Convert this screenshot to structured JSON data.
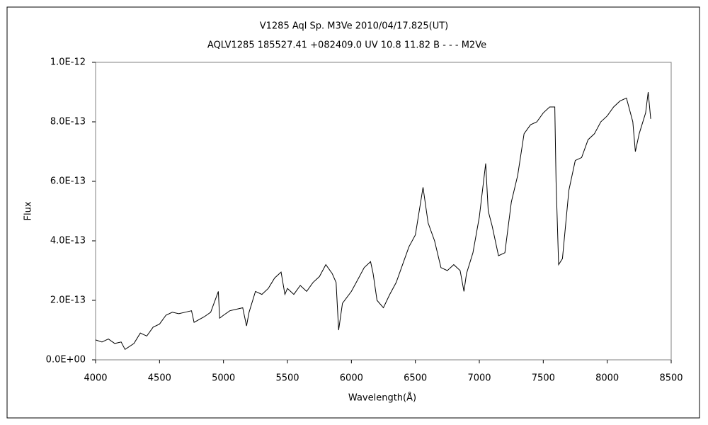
{
  "chart_data": {
    "type": "line",
    "title": "V1285 Aql    Sp. M3Ve    2010/04/17.825(UT)",
    "subtitle": "AQLV1285 185527.41 +082409.0 UV 10.8 11.82 B - - - M2Ve",
    "x_label": "Wavelength(Å)",
    "y_label": "Flux",
    "xlim": [
      4000,
      8500
    ],
    "xticks": [
      4000,
      4500,
      5000,
      5500,
      6000,
      6500,
      7000,
      7500,
      8000,
      8500
    ],
    "ylim": [
      0,
      1e-12
    ],
    "yticks": [
      {
        "value": 0,
        "label": "0.0E+00"
      },
      {
        "value": 2e-13,
        "label": "2.0E-13"
      },
      {
        "value": 4e-13,
        "label": "4.0E-13"
      },
      {
        "value": 6e-13,
        "label": "6.0E-13"
      },
      {
        "value": 8e-13,
        "label": "8.0E-13"
      },
      {
        "value": 1e-12,
        "label": "1.0E-12"
      }
    ],
    "grid": false,
    "series": [
      {
        "color": "#000000",
        "x": [
          4000,
          4050,
          4100,
          4150,
          4200,
          4230,
          4300,
          4350,
          4400,
          4450,
          4500,
          4550,
          4600,
          4650,
          4700,
          4750,
          4770,
          4850,
          4900,
          4960,
          4970,
          5000,
          5050,
          5100,
          5150,
          5180,
          5200,
          5250,
          5300,
          5350,
          5400,
          5450,
          5480,
          5500,
          5550,
          5600,
          5650,
          5700,
          5750,
          5800,
          5850,
          5880,
          5900,
          5930,
          6000,
          6050,
          6100,
          6150,
          6170,
          6200,
          6250,
          6300,
          6350,
          6400,
          6450,
          6500,
          6560,
          6600,
          6650,
          6700,
          6750,
          6800,
          6850,
          6880,
          6900,
          6950,
          7000,
          7050,
          7070,
          7100,
          7150,
          7200,
          7250,
          7300,
          7350,
          7400,
          7450,
          7500,
          7550,
          7590,
          7600,
          7620,
          7650,
          7700,
          7750,
          7800,
          7850,
          7900,
          7950,
          8000,
          8050,
          8100,
          8150,
          8200,
          8220,
          8250,
          8300,
          8320,
          8340
        ],
        "values": [
          6.7e-14,
          6e-14,
          7e-14,
          5.5e-14,
          6e-14,
          3.5e-14,
          5.5e-14,
          9e-14,
          8e-14,
          1.1e-13,
          1.2e-13,
          1.5e-13,
          1.6e-13,
          1.55e-13,
          1.6e-13,
          1.65e-13,
          1.26e-13,
          1.45e-13,
          1.6e-13,
          2.3e-13,
          1.4e-13,
          1.5e-13,
          1.65e-13,
          1.7e-13,
          1.75e-13,
          1.14e-13,
          1.6e-13,
          2.3e-13,
          2.2e-13,
          2.4e-13,
          2.75e-13,
          2.95e-13,
          2.2e-13,
          2.4e-13,
          2.2e-13,
          2.5e-13,
          2.3e-13,
          2.6e-13,
          2.8e-13,
          3.2e-13,
          2.9e-13,
          2.6e-13,
          1e-13,
          1.9e-13,
          2.3e-13,
          2.7e-13,
          3.1e-13,
          3.3e-13,
          2.9e-13,
          2e-13,
          1.75e-13,
          2.2e-13,
          2.6e-13,
          3.2e-13,
          3.8e-13,
          4.2e-13,
          5.8e-13,
          4.6e-13,
          4e-13,
          3.1e-13,
          3e-13,
          3.2e-13,
          3e-13,
          2.3e-13,
          2.9e-13,
          3.6e-13,
          4.8e-13,
          6.6e-13,
          5e-13,
          4.5e-13,
          3.5e-13,
          3.6e-13,
          5.3e-13,
          6.2e-13,
          7.6e-13,
          7.9e-13,
          8e-13,
          8.3e-13,
          8.5e-13,
          8.5e-13,
          6e-13,
          3.2e-13,
          3.4e-13,
          5.7e-13,
          6.7e-13,
          6.8e-13,
          7.4e-13,
          7.6e-13,
          8e-13,
          8.2e-13,
          8.5e-13,
          8.7e-13,
          8.8e-13,
          8e-13,
          7e-13,
          7.6e-13,
          8.3e-13,
          9e-13,
          8.1e-13
        ]
      }
    ]
  }
}
